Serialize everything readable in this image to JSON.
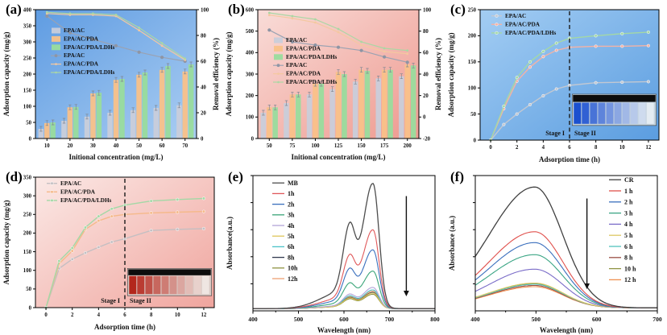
{
  "chart_data": [
    {
      "tag": "(a)",
      "type": "bar_line_dual",
      "bg": [
        "#5f9ce2",
        "#aacdf2"
      ],
      "xlabel": "Initional concentration (mg/L)",
      "ylabel_left": "Adsorption capacity (mg/g)",
      "ylabel_right": "Removal efficiency (%)",
      "categories": [
        10,
        20,
        30,
        40,
        50,
        60,
        70
      ],
      "ylim_left": [
        0,
        400
      ],
      "ystep_left": 50,
      "ylim_right": [
        0,
        100
      ],
      "ystep_right": 20,
      "legend_y": 40,
      "bar_series": [
        {
          "name": "EPA/AC",
          "color": "#c9cdda",
          "values": [
            30,
            55,
            68,
            80,
            88,
            95,
            103
          ]
        },
        {
          "name": "EPA/AC/PDA",
          "color": "#f9c189",
          "values": [
            48,
            97,
            140,
            182,
            198,
            213,
            208
          ]
        },
        {
          "name": "EPA/AC/PDA/LDHs",
          "color": "#99dc9d",
          "values": [
            50,
            98,
            142,
            185,
            205,
            225,
            230
          ]
        }
      ],
      "line_series": [
        {
          "name": "EPA/AC",
          "color": "#9aa2b2",
          "marker": true,
          "values": [
            95,
            82,
            77,
            72,
            67,
            63,
            60
          ]
        },
        {
          "name": "EPA/AC/PDA",
          "color": "#f4c8a0",
          "marker": false,
          "values": [
            97,
            96,
            96,
            95,
            84,
            72,
            61
          ]
        },
        {
          "name": "EPA/AC/PDA/LDHs",
          "color": "#abd7a4",
          "marker": false,
          "values": [
            98,
            97,
            97,
            96,
            86,
            74,
            62
          ]
        }
      ]
    },
    {
      "tag": "(b)",
      "type": "bar_line_dual",
      "bg": [
        "#f9dcd8",
        "#ee9a90"
      ],
      "xlabel": "Initional concentration (mg/L)",
      "ylabel_left": "Adsorption capacity (mg/g)",
      "ylabel_right": "Removal efficiency (%)",
      "categories": [
        50,
        75,
        100,
        125,
        150,
        175,
        200
      ],
      "ylim_left": [
        0,
        600
      ],
      "ystep_left": 100,
      "ylim_right": [
        -20,
        100
      ],
      "ystep_right": 20,
      "legend_y": 52,
      "bar_series": [
        {
          "name": "EPA/AC",
          "color": "#c9cdda",
          "values": [
            120,
            165,
            205,
            230,
            265,
            280,
            290
          ]
        },
        {
          "name": "EPA/AC/PDA",
          "color": "#f9c189",
          "values": [
            145,
            205,
            255,
            310,
            320,
            320,
            345
          ]
        },
        {
          "name": "EPA/AC/PDA/LDHs",
          "color": "#99dc9d",
          "values": [
            145,
            205,
            255,
            300,
            315,
            320,
            340
          ]
        }
      ],
      "line_series": [
        {
          "name": "EPA/AC",
          "color": "#9aa2b2",
          "marker": true,
          "values": [
            81,
            70,
            67,
            65,
            62,
            56,
            51
          ]
        },
        {
          "name": "EPA/AC/PDA",
          "color": "#f4c8a0",
          "marker": false,
          "values": [
            95,
            92,
            88,
            79,
            67,
            61,
            59
          ]
        },
        {
          "name": "EPA/AC/PDA/LDHs",
          "color": "#abd7a4",
          "marker": false,
          "values": [
            97,
            94,
            91,
            82,
            70,
            64,
            62
          ]
        }
      ]
    },
    {
      "tag": "(c)",
      "type": "kinetics",
      "bg": [
        "#a3cdf3",
        "#5b9de0"
      ],
      "xlabel": "Adsorption time (h)",
      "ylabel": "Adsorption capacity (mg/g)",
      "x": [
        0,
        1,
        2,
        3,
        4,
        5,
        6,
        8,
        10,
        12
      ],
      "xticks": [
        0,
        2,
        4,
        6,
        8,
        10,
        12
      ],
      "ylim": [
        0,
        250
      ],
      "ystep": 50,
      "series": [
        {
          "name": "EPA/AC",
          "color": "#c2c8d2",
          "values": [
            0,
            30,
            50,
            68,
            85,
            98,
            105,
            110,
            111,
            112
          ]
        },
        {
          "name": "EPA/AC/PDA",
          "color": "#f3b2a6",
          "values": [
            0,
            60,
            113,
            140,
            160,
            172,
            178,
            180,
            180,
            181
          ]
        },
        {
          "name": "EPA/AC/PDA/LDHs",
          "color": "#a4d8a6",
          "values": [
            0,
            65,
            120,
            150,
            170,
            186,
            195,
            200,
            204,
            207
          ]
        }
      ],
      "divider_x": 6,
      "stage_labels": [
        "Stage I",
        "Stage II"
      ],
      "inset": {
        "bg": "#c3d2dd",
        "cap": "#0d0d0d",
        "from": "#1b50cf",
        "to": "#e4ecf2",
        "n": 10,
        "x1": 6.2,
        "x2": 12.6,
        "y1": 28,
        "y2": 88
      }
    },
    {
      "tag": "(d)",
      "type": "kinetics",
      "bg": [
        "#fbe9e6",
        "#f0a59e"
      ],
      "xlabel": "Adsorption time (h)",
      "ylabel": "Adsorption capacity (mg/g)",
      "x": [
        0,
        1,
        2,
        3,
        4,
        5,
        6,
        8,
        10,
        12
      ],
      "xticks": [
        0,
        2,
        4,
        6,
        8,
        10,
        12
      ],
      "ylim": [
        0,
        350
      ],
      "ystep": 50,
      "series": [
        {
          "name": "EPA/AC",
          "color": "#c4bfc2",
          "values": [
            0,
            105,
            130,
            147,
            162,
            176,
            185,
            207,
            210,
            212
          ]
        },
        {
          "name": "EPA/AC/PDA",
          "color": "#f5b98a",
          "values": [
            0,
            118,
            152,
            210,
            233,
            245,
            250,
            254,
            256,
            258
          ]
        },
        {
          "name": "EPA/AC/PDA/LDHs",
          "color": "#a4d8a6",
          "values": [
            0,
            125,
            160,
            215,
            245,
            265,
            275,
            286,
            290,
            293
          ]
        }
      ],
      "divider_x": 6,
      "stage_labels": [
        "Stage I",
        "Stage II"
      ],
      "inset": {
        "bg": "#d9cac5",
        "cap": "#0d0d0d",
        "from": "#b3271c",
        "to": "#efe6e2",
        "n": 10,
        "x1": 6.2,
        "x2": 12.6,
        "y1": 32,
        "y2": 105
      }
    },
    {
      "tag": "(e)",
      "type": "spectra",
      "xlabel": "Wavelength (nm)",
      "ylabel": "Absorbance(a.u.)",
      "xlim": [
        400,
        800
      ],
      "xstep": 100,
      "xminor": 50,
      "ymax": 1.12,
      "model": {
        "baseline": 0.018,
        "peaks": [
          {
            "c": 664,
            "sl": 22,
            "sr": 13,
            "a": 1.0
          },
          {
            "c": 612,
            "sl": 14,
            "sr": 12,
            "a": 0.52
          },
          {
            "c": 598,
            "sl": 48,
            "sr": 40,
            "a": 0.14
          }
        ]
      },
      "samples": [
        {
          "label": "MB",
          "color": "#4d4d4d",
          "h": 1.0
        },
        {
          "label": "1h",
          "color": "#e0585a",
          "h": 0.63
        },
        {
          "label": "2h",
          "color": "#3a6fbd",
          "h": 0.47
        },
        {
          "label": "3h",
          "color": "#3aa578",
          "h": 0.3
        },
        {
          "label": "4h",
          "color": "#b2a3d8",
          "h": 0.17
        },
        {
          "label": "5h",
          "color": "#dfc65c",
          "h": 0.125
        },
        {
          "label": "6h",
          "color": "#4cc3c8",
          "h": 0.15
        },
        {
          "label": "8h",
          "color": "#30394e",
          "h": 0.13
        },
        {
          "label": "10h",
          "color": "#8e9342",
          "h": 0.115
        },
        {
          "label": "12h",
          "color": "#efa173",
          "h": 0.14
        }
      ],
      "legend_side": "left",
      "arrow": {
        "x": 737,
        "y1": 0.95,
        "y2": 0.12
      }
    },
    {
      "tag": "(f)",
      "type": "spectra",
      "xlabel": "Wavelength (nm)",
      "ylabel": "Absorbance (a.u.)",
      "xlim": [
        400,
        700
      ],
      "xstep": 100,
      "xminor": 50,
      "ymax": 1.12,
      "model": {
        "baseline": 0.025,
        "peaks": [
          {
            "c": 498,
            "sl": 75,
            "sr": 46,
            "a": 1.0
          }
        ]
      },
      "samples": [
        {
          "label": "CR",
          "color": "#404040",
          "h": 1.0
        },
        {
          "label": "1 h",
          "color": "#e0504c",
          "h": 0.63
        },
        {
          "label": "2 h",
          "color": "#3a6fbd",
          "h": 0.54
        },
        {
          "label": "3 h",
          "color": "#3aa584",
          "h": 0.44
        },
        {
          "label": "4 h",
          "color": "#7a6cc8",
          "h": 0.32
        },
        {
          "label": "5 h",
          "color": "#ddc864",
          "h": 0.205
        },
        {
          "label": "6 h",
          "color": "#52c4bc",
          "h": 0.195
        },
        {
          "label": "8 h",
          "color": "#9a4f45",
          "h": 0.185
        },
        {
          "label": "10 h",
          "color": "#8e9342",
          "h": 0.2
        },
        {
          "label": "12 h",
          "color": "#ef8f4f",
          "h": 0.175
        }
      ],
      "legend_side": "right",
      "arrow": {
        "x": 584,
        "y1": 0.93,
        "y2": 0.18
      }
    }
  ]
}
